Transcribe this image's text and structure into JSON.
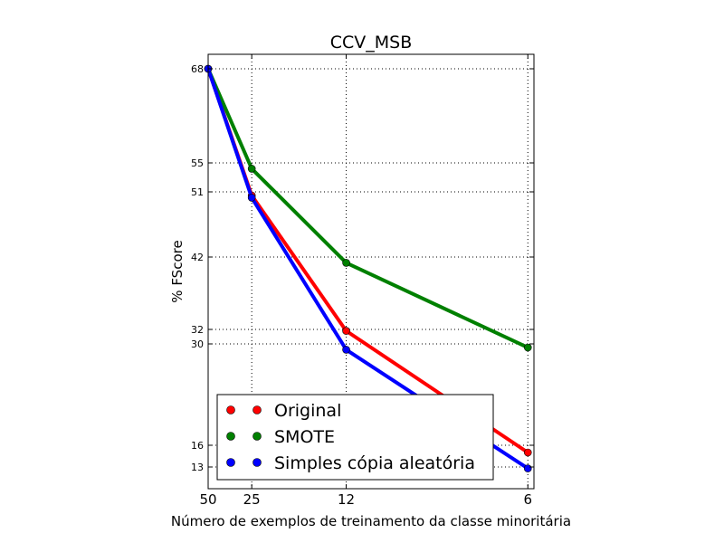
{
  "chart_data": {
    "type": "line",
    "title": "CCV_MSB",
    "xlabel": "Número de exemplos de treinamento da classe minoritária",
    "ylabel": "% FScore",
    "x": [
      50,
      25,
      12,
      6
    ],
    "x_tick_labels": [
      "50",
      "25",
      "12",
      "6"
    ],
    "y_ticks": [
      68,
      55,
      51,
      42,
      32,
      30,
      16,
      13
    ],
    "y_tick_labels": [
      "68",
      "55",
      "51",
      "42",
      "32",
      "30",
      "16",
      "13"
    ],
    "ylim": [
      10,
      70
    ],
    "grid": true,
    "legend_position": "lower-left",
    "series": [
      {
        "name": "Original",
        "color": "#ff0000",
        "values": [
          68,
          50.5,
          31.8,
          15
        ]
      },
      {
        "name": "SMOTE",
        "color": "#008000",
        "values": [
          68,
          54.2,
          41.2,
          29.5
        ]
      },
      {
        "name": "Simples cópia aleatória",
        "color": "#0000ff",
        "values": [
          68,
          50.2,
          29.2,
          12.8
        ]
      }
    ]
  }
}
